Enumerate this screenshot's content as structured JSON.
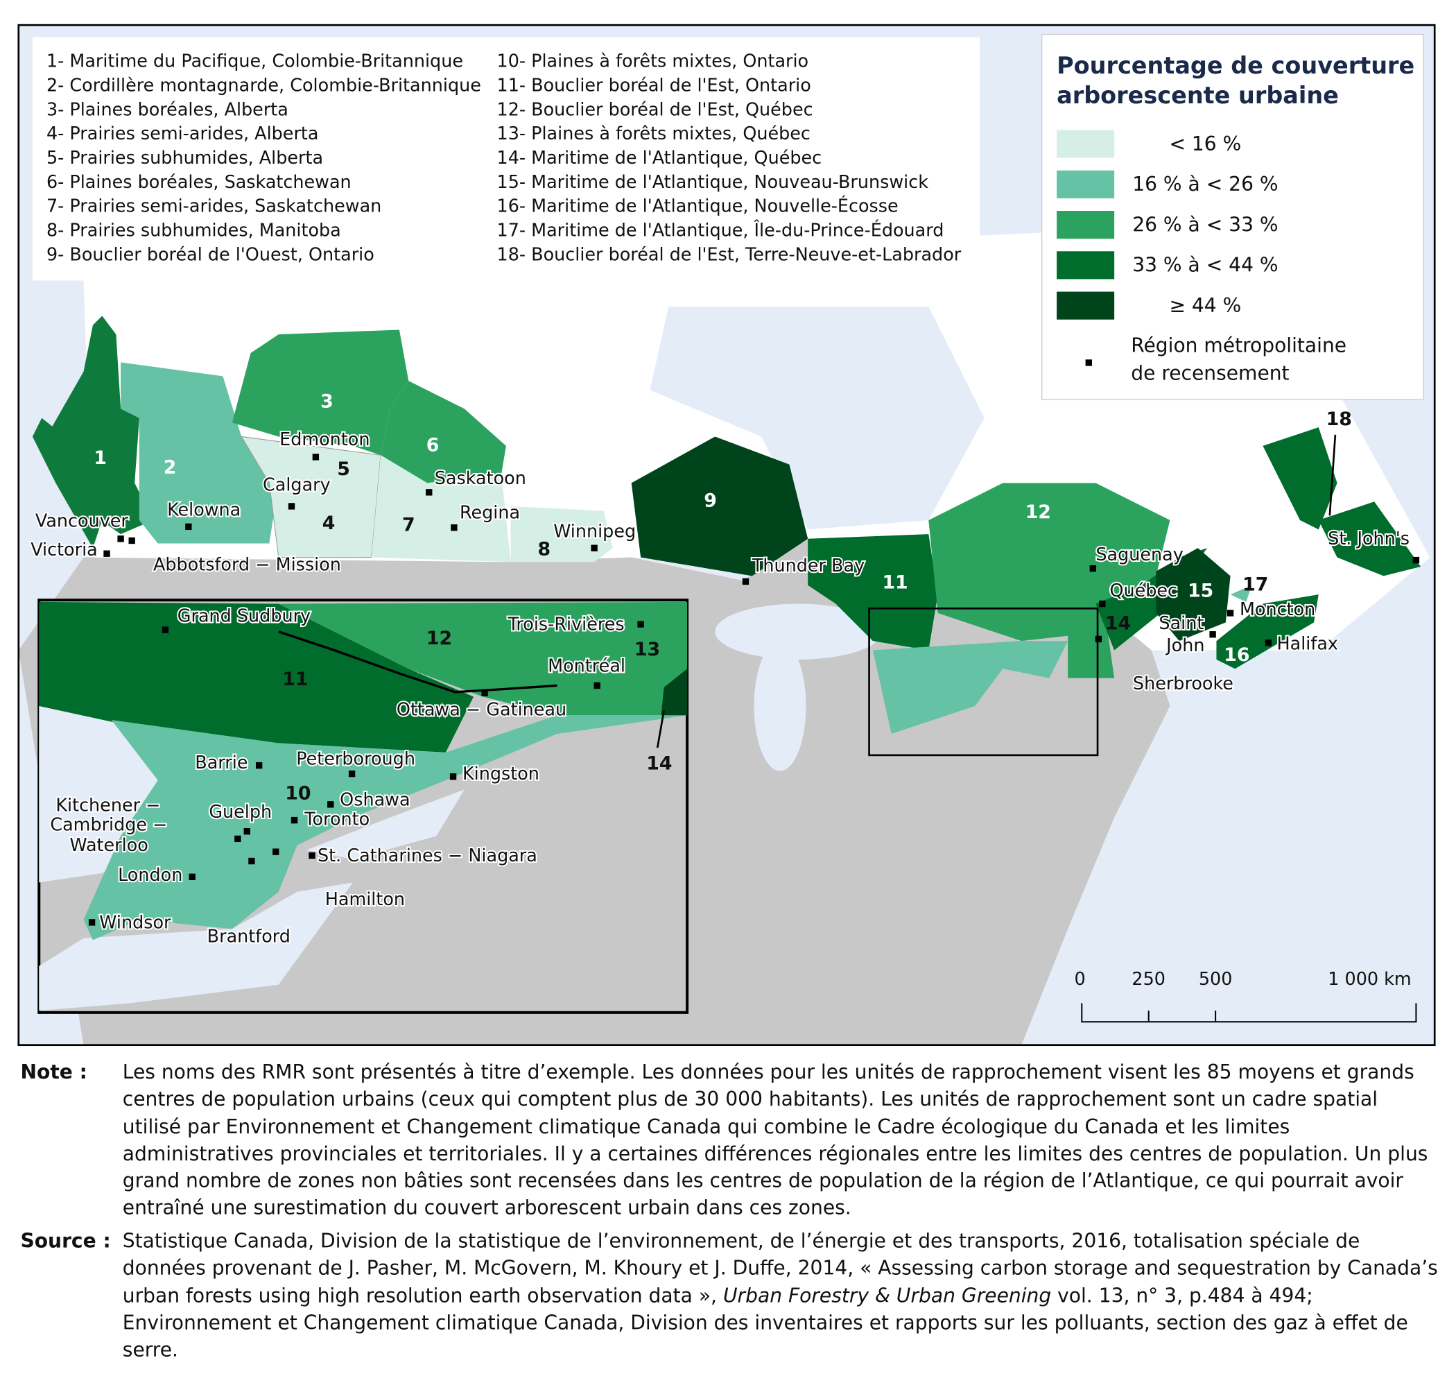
{
  "regions": [
    "1- Maritime du Pacifique, Colombie-Britannique",
    "2- Cordillère montagnarde, Colombie-Britannique",
    "3- Plaines boréales, Alberta",
    "4- Prairies semi-arides, Alberta",
    "5- Prairies subhumides, Alberta",
    "6- Plaines boréales, Saskatchewan",
    "7- Prairies semi-arides, Saskatchewan",
    "8- Prairies subhumides, Manitoba",
    "9- Bouclier boréal de l'Ouest, Ontario",
    "10- Plaines à forêts mixtes, Ontario",
    "11- Bouclier boréal de l'Est, Ontario",
    "12- Bouclier boréal de l'Est, Québec",
    "13- Plaines à forêts mixtes, Québec",
    "14- Maritime de l'Atlantique, Québec",
    "15- Maritime de l'Atlantique, Nouveau-Brunswick",
    "16- Maritime de l'Atlantique, Nouvelle-Écosse",
    "17- Maritime de l'Atlantique, Île-du-Prince-Édouard",
    "18- Bouclier boréal de l'Est, Terre-Neuve-et-Labrador"
  ],
  "legend": {
    "title": [
      "Pourcentage de couverture",
      "arborescente urbaine"
    ],
    "classes": [
      {
        "label": "< 16 %",
        "color": "#d5efe6"
      },
      {
        "label": "16 % à < 26 %",
        "color": "#66c2a4"
      },
      {
        "label": "26 % à < 33 %",
        "color": "#2ca25f"
      },
      {
        "label": "33 % à < 44 %",
        "color": "#006d2c"
      },
      {
        "label": "≥ 44 %",
        "color": "#00441b"
      }
    ],
    "cma": [
      "Région métropolitaine",
      "de recensement"
    ]
  },
  "map": {
    "region_numbers": [
      "1",
      "2",
      "3",
      "5",
      "4",
      "6",
      "7",
      "8",
      "9",
      "11",
      "12",
      "14",
      "15",
      "16",
      "17",
      "18"
    ],
    "cities": [
      "Edmonton",
      "Calgary",
      "Saskatoon",
      "Regina",
      "Winnipeg",
      "Kelowna",
      "Vancouver",
      "Victoria",
      "Abbotsford − Mission",
      "Thunder Bay",
      "Saguenay",
      "Québec",
      "Saint",
      "John",
      "Moncton",
      "Halifax",
      "St. John's",
      "Sherbrooke"
    ],
    "inset_numbers": [
      "11",
      "12",
      "13",
      "10",
      "14"
    ],
    "inset_cities": [
      "Grand Sudbury",
      "Trois-Rivières",
      "Montréal",
      "Ottawa − Gatineau",
      "Barrie",
      "Peterborough",
      "Kingston",
      "Oshawa",
      "Toronto",
      "Guelph",
      "Kitchener −",
      "Cambridge −",
      "Waterloo",
      "London",
      "St. Catharines − Niagara",
      "Hamilton",
      "Brantford",
      "Windsor"
    ]
  },
  "scale": [
    "0",
    "250",
    "500",
    "1 000 km"
  ],
  "note": {
    "label": "Note :",
    "text": "Les noms des RMR sont présentés à titre d’exemple. Les données pour les unités de rapprochement visent les 85 moyens et grands centres de population urbains (ceux qui comptent plus de 30 000 habitants). Les unités de rapprochement sont un cadre spatial utilisé par Environnement et Changement climatique Canada qui combine le Cadre écologique du Canada et les limites administratives provinciales et territoriales. Il y a certaines différences régionales entre les limites des centres de population. Un plus grand nombre de zones non bâties sont recensées dans les centres de population de la région de l’Atlantique, ce qui pourrait avoir entraîné une surestimation du couvert arborescent urbain dans ces zones."
  },
  "source": {
    "label": "Source :",
    "text_before": "Statistique Canada, Division de la statistique de l’environnement, de l’énergie et des transports, 2016, totalisation spéciale de données provenant de J. Pasher, M. McGovern, M. Khoury et J. Duffe, 2014, « Assessing carbon storage and sequestration by Canada’s urban forests using high resolution earth observation data », ",
    "italic": "Urban Forestry & Urban Greening",
    "text_after": " vol. 13, n° 3, p.484 à 494; Environnement et Changement climatique Canada, Division des inventaires et rapports sur les polluants, section des gaz à effet de serre."
  }
}
